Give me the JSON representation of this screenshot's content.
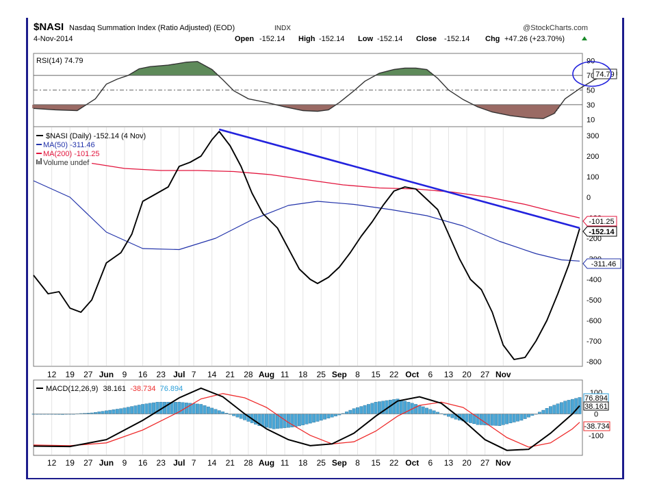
{
  "header": {
    "symbol": "$NASI",
    "name": "Nasdaq Summation Index (Ratio Adjusted) (EOD)",
    "exchange": "INDX",
    "brand": "@StockCharts.com",
    "date": "4-Nov-2014",
    "open_label": "Open",
    "open": "-152.14",
    "high_label": "High",
    "high": "-152.14",
    "low_label": "Low",
    "low": "-152.14",
    "close_label": "Close",
    "close": "-152.14",
    "chg_label": "Chg",
    "chg": "+47.26 (+23.70%)"
  },
  "colors": {
    "price": "#000000",
    "ma50": "#2233aa",
    "ma200": "#e2143c",
    "trend": "#2222dd",
    "rsi_overbought": "#5e8a5a",
    "rsi_oversold": "#9a6a64",
    "macd_hist": "#4aa6d6",
    "macd_signal": "#ee2b2b"
  },
  "x_axis": {
    "labels": [
      {
        "text": "12",
        "bold": false
      },
      {
        "text": "19",
        "bold": false
      },
      {
        "text": "27",
        "bold": false
      },
      {
        "text": "Jun",
        "bold": true
      },
      {
        "text": "9",
        "bold": false
      },
      {
        "text": "16",
        "bold": false
      },
      {
        "text": "23",
        "bold": false
      },
      {
        "text": "Jul",
        "bold": true
      },
      {
        "text": "7",
        "bold": false
      },
      {
        "text": "14",
        "bold": false
      },
      {
        "text": "21",
        "bold": false
      },
      {
        "text": "28",
        "bold": false
      },
      {
        "text": "Aug",
        "bold": true
      },
      {
        "text": "11",
        "bold": false
      },
      {
        "text": "18",
        "bold": false
      },
      {
        "text": "25",
        "bold": false
      },
      {
        "text": "Sep",
        "bold": true
      },
      {
        "text": "8",
        "bold": false
      },
      {
        "text": "15",
        "bold": false
      },
      {
        "text": "22",
        "bold": false
      },
      {
        "text": "Oct",
        "bold": true
      },
      {
        "text": "6",
        "bold": false
      },
      {
        "text": "13",
        "bold": false
      },
      {
        "text": "20",
        "bold": false
      },
      {
        "text": "27",
        "bold": false
      },
      {
        "text": "Nov",
        "bold": true
      }
    ],
    "label_index": [
      5,
      10,
      15,
      20,
      25,
      30,
      35,
      40,
      44,
      49,
      54,
      59,
      64,
      69,
      74,
      79,
      84,
      89,
      94,
      99,
      104,
      109,
      114,
      119,
      124,
      129
    ]
  },
  "chart_data": [
    {
      "type": "line",
      "panel": "rsi",
      "legend": "RSI(14) 74.79",
      "last_value": "74.79",
      "yticks": [
        10,
        30,
        50,
        70,
        90
      ],
      "ylim": [
        0,
        100
      ],
      "levels": [
        30,
        50,
        70
      ],
      "series": [
        {
          "name": "RSI(14)",
          "points": [
            [
              0,
              25
            ],
            [
              6,
              23
            ],
            [
              12,
              22
            ],
            [
              17,
              38
            ],
            [
              20,
              58
            ],
            [
              23,
              65
            ],
            [
              26,
              70
            ],
            [
              29,
              79
            ],
            [
              32,
              82
            ],
            [
              37,
              84
            ],
            [
              42,
              88
            ],
            [
              45,
              89
            ],
            [
              49,
              78
            ],
            [
              52,
              64
            ],
            [
              55,
              49
            ],
            [
              59,
              38
            ],
            [
              64,
              33
            ],
            [
              69,
              27
            ],
            [
              74,
              22
            ],
            [
              78,
              21
            ],
            [
              81,
              23
            ],
            [
              84,
              33
            ],
            [
              88,
              49
            ],
            [
              91,
              62
            ],
            [
              95,
              73
            ],
            [
              99,
              78
            ],
            [
              102,
              80
            ],
            [
              105,
              80
            ],
            [
              108,
              78
            ],
            [
              111,
              66
            ],
            [
              114,
              50
            ],
            [
              118,
              37
            ],
            [
              122,
              27
            ],
            [
              126,
              20
            ],
            [
              131,
              15
            ],
            [
              136,
              12
            ],
            [
              140,
              11
            ],
            [
              143,
              18
            ],
            [
              146,
              38
            ],
            [
              150,
              52
            ],
            [
              154,
              64
            ],
            [
              158,
              71
            ],
            [
              160,
              75
            ]
          ]
        }
      ]
    },
    {
      "type": "line",
      "panel": "price",
      "legend": [
        "$NASI (Daily) -152.14 (4 Nov)",
        "MA(50) -311.46",
        "MA(200) -101.25",
        "Volume undef"
      ],
      "yticks": [
        300,
        200,
        100,
        0,
        -100,
        -200,
        -300,
        -400,
        -500,
        -600,
        -700,
        -800
      ],
      "ylim": [
        -820,
        340
      ],
      "value_tags": {
        "ma200": "-101.25",
        "price": "-152.14",
        "ma50": "-311.46"
      },
      "series": [
        {
          "name": "$NASI",
          "points": [
            [
              0,
              -380
            ],
            [
              4,
              -470
            ],
            [
              7,
              -460
            ],
            [
              10,
              -540
            ],
            [
              13,
              -560
            ],
            [
              16,
              -500
            ],
            [
              20,
              -320
            ],
            [
              24,
              -270
            ],
            [
              27,
              -180
            ],
            [
              30,
              -20
            ],
            [
              33,
              10
            ],
            [
              37,
              50
            ],
            [
              40,
              150
            ],
            [
              43,
              170
            ],
            [
              46,
              200
            ],
            [
              49,
              280
            ],
            [
              51,
              320
            ],
            [
              54,
              250
            ],
            [
              57,
              150
            ],
            [
              60,
              20
            ],
            [
              63,
              -80
            ],
            [
              67,
              -150
            ],
            [
              70,
              -250
            ],
            [
              73,
              -350
            ],
            [
              76,
              -400
            ],
            [
              78,
              -420
            ],
            [
              81,
              -390
            ],
            [
              84,
              -340
            ],
            [
              87,
              -270
            ],
            [
              90,
              -190
            ],
            [
              93,
              -120
            ],
            [
              96,
              -40
            ],
            [
              99,
              30
            ],
            [
              102,
              50
            ],
            [
              105,
              40
            ],
            [
              108,
              -10
            ],
            [
              111,
              -60
            ],
            [
              114,
              -180
            ],
            [
              117,
              -300
            ],
            [
              120,
              -400
            ],
            [
              123,
              -450
            ],
            [
              126,
              -560
            ],
            [
              129,
              -720
            ],
            [
              132,
              -790
            ],
            [
              135,
              -780
            ],
            [
              138,
              -700
            ],
            [
              141,
              -600
            ],
            [
              144,
              -470
            ],
            [
              147,
              -330
            ],
            [
              150,
              -152
            ]
          ]
        },
        {
          "name": "MA(50)",
          "points": [
            [
              0,
              80
            ],
            [
              10,
              0
            ],
            [
              20,
              -170
            ],
            [
              30,
              -250
            ],
            [
              40,
              -255
            ],
            [
              50,
              -200
            ],
            [
              60,
              -110
            ],
            [
              70,
              -40
            ],
            [
              78,
              -20
            ],
            [
              88,
              -35
            ],
            [
              98,
              -60
            ],
            [
              108,
              -90
            ],
            [
              118,
              -140
            ],
            [
              128,
              -215
            ],
            [
              138,
              -275
            ],
            [
              145,
              -305
            ],
            [
              150,
              -311
            ]
          ]
        },
        {
          "name": "MA(200)",
          "points": [
            [
              16,
              165
            ],
            [
              25,
              140
            ],
            [
              35,
              130
            ],
            [
              45,
              130
            ],
            [
              55,
              125
            ],
            [
              65,
              110
            ],
            [
              75,
              85
            ],
            [
              85,
              60
            ],
            [
              95,
              45
            ],
            [
              105,
              40
            ],
            [
              115,
              25
            ],
            [
              125,
              0
            ],
            [
              135,
              -35
            ],
            [
              145,
              -80
            ],
            [
              150,
              -101
            ]
          ]
        },
        {
          "name": "Trendline",
          "points": [
            [
              51,
              330
            ],
            [
              150,
              -150
            ]
          ]
        }
      ]
    },
    {
      "type": "bar",
      "panel": "macd",
      "legend_prefix": "MACD(12,26,9)",
      "legend_macd": "38.161",
      "legend_signal": "-38.734",
      "legend_hist": "76.894",
      "yticks": [
        100,
        0,
        -100
      ],
      "ylim": [
        -190,
        155
      ],
      "value_tags": {
        "hist": "76.894",
        "macd": "38.161",
        "signal": "-38.734"
      },
      "series": [
        {
          "name": "MACD",
          "points": [
            [
              0,
              -150
            ],
            [
              10,
              -152
            ],
            [
              20,
              -120
            ],
            [
              30,
              -30
            ],
            [
              40,
              75
            ],
            [
              46,
              120
            ],
            [
              52,
              80
            ],
            [
              58,
              0
            ],
            [
              64,
              -70
            ],
            [
              70,
              -120
            ],
            [
              76,
              -148
            ],
            [
              82,
              -140
            ],
            [
              88,
              -90
            ],
            [
              94,
              -10
            ],
            [
              100,
              60
            ],
            [
              106,
              80
            ],
            [
              112,
              50
            ],
            [
              118,
              -30
            ],
            [
              124,
              -120
            ],
            [
              130,
              -170
            ],
            [
              136,
              -165
            ],
            [
              142,
              -90
            ],
            [
              148,
              0
            ],
            [
              150,
              38
            ]
          ]
        },
        {
          "name": "Signal",
          "points": [
            [
              0,
              -145
            ],
            [
              10,
              -148
            ],
            [
              20,
              -135
            ],
            [
              30,
              -75
            ],
            [
              40,
              10
            ],
            [
              46,
              70
            ],
            [
              52,
              95
            ],
            [
              58,
              75
            ],
            [
              64,
              30
            ],
            [
              70,
              -40
            ],
            [
              76,
              -100
            ],
            [
              82,
              -140
            ],
            [
              88,
              -130
            ],
            [
              94,
              -80
            ],
            [
              100,
              -10
            ],
            [
              106,
              40
            ],
            [
              112,
              55
            ],
            [
              118,
              30
            ],
            [
              124,
              -40
            ],
            [
              130,
              -110
            ],
            [
              136,
              -155
            ],
            [
              142,
              -135
            ],
            [
              148,
              -70
            ],
            [
              150,
              -39
            ]
          ]
        },
        {
          "name": "Histogram",
          "points": [
            [
              0,
              0
            ],
            [
              8,
              -3
            ],
            [
              16,
              5
            ],
            [
              24,
              25
            ],
            [
              30,
              45
            ],
            [
              34,
              55
            ],
            [
              40,
              55
            ],
            [
              46,
              45
            ],
            [
              52,
              10
            ],
            [
              56,
              -15
            ],
            [
              62,
              -55
            ],
            [
              66,
              -70
            ],
            [
              72,
              -60
            ],
            [
              78,
              -35
            ],
            [
              84,
              -5
            ],
            [
              88,
              25
            ],
            [
              94,
              55
            ],
            [
              100,
              70
            ],
            [
              106,
              40
            ],
            [
              110,
              15
            ],
            [
              116,
              -25
            ],
            [
              122,
              -50
            ],
            [
              128,
              -55
            ],
            [
              134,
              -30
            ],
            [
              138,
              0
            ],
            [
              142,
              35
            ],
            [
              146,
              60
            ],
            [
              150,
              77
            ]
          ]
        }
      ]
    }
  ]
}
